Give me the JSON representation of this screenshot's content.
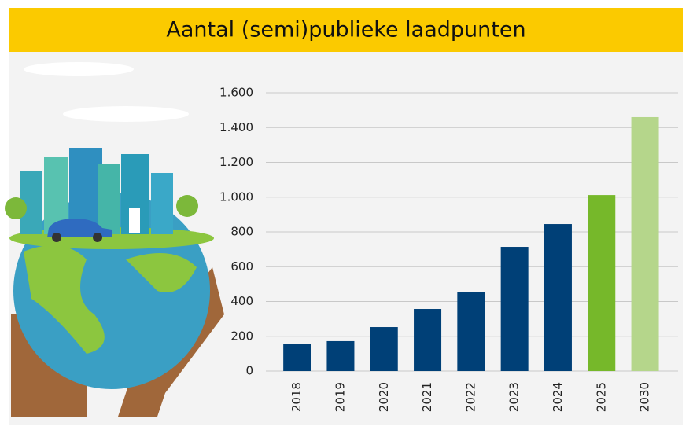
{
  "chart_data": {
    "type": "bar",
    "title": "Aantal (semi)publieke laadpunten",
    "categories": [
      "2018",
      "2019",
      "2020",
      "2021",
      "2022",
      "2023",
      "2024",
      "2025",
      "2030"
    ],
    "values": [
      158,
      172,
      253,
      357,
      456,
      714,
      845,
      1012,
      1460
    ],
    "colors": [
      "#004077",
      "#004077",
      "#004077",
      "#004077",
      "#004077",
      "#004077",
      "#004077",
      "#76b82a",
      "#b5d68b"
    ],
    "ylim": [
      0,
      1600
    ],
    "yticks": [
      0,
      200,
      400,
      600,
      800,
      {
        "value": 1000,
        "label": "1.000"
      },
      {
        "value": 1200,
        "label": "1.200"
      },
      {
        "value": 1400,
        "label": "1.400"
      },
      {
        "value": 1600,
        "label": "1.600"
      }
    ],
    "grid": true
  }
}
